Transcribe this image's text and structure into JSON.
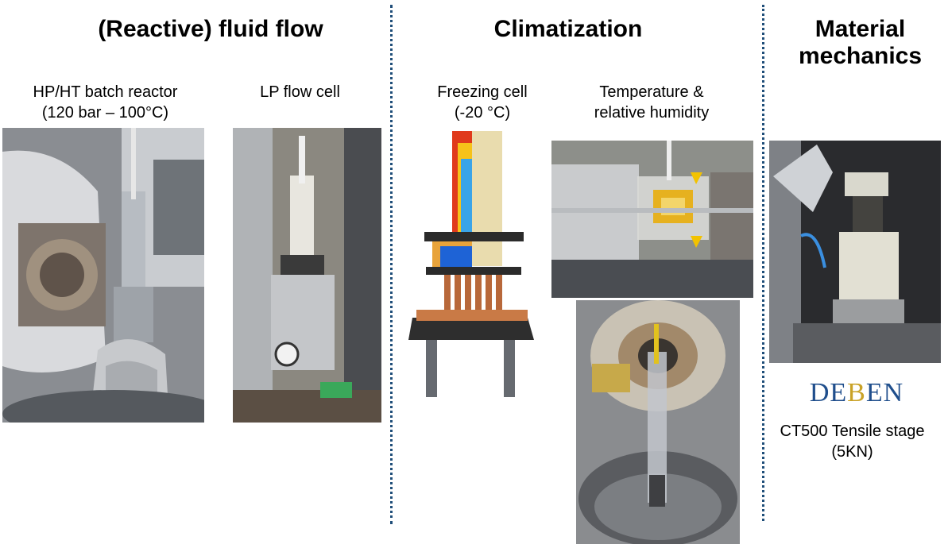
{
  "sections": {
    "fluid_flow": {
      "title": "(Reactive) fluid flow"
    },
    "climatization": {
      "title": "Climatization"
    },
    "material_mechanics": {
      "title_line1": "Material",
      "title_line2": "mechanics"
    }
  },
  "devices": {
    "batch_reactor": {
      "line1": "HP/HT batch reactor",
      "line2": "(120 bar – 100°C)"
    },
    "lp_flow_cell": {
      "line1": "LP flow cell"
    },
    "freezing_cell": {
      "line1": "Freezing cell",
      "line2": "(-20 °C)"
    },
    "temp_humidity": {
      "line1": "Temperature &",
      "line2": "relative humidity"
    },
    "tensile_stage": {
      "line1": "CT500 Tensile stage",
      "line2": "(5KN)"
    }
  },
  "logo": {
    "text_left": "DE",
    "text_mid": "B",
    "text_right": "EN"
  },
  "colors": {
    "divider": "#1f4e79",
    "logo_blue": "#1f4e8c",
    "logo_gold": "#c9a227"
  }
}
